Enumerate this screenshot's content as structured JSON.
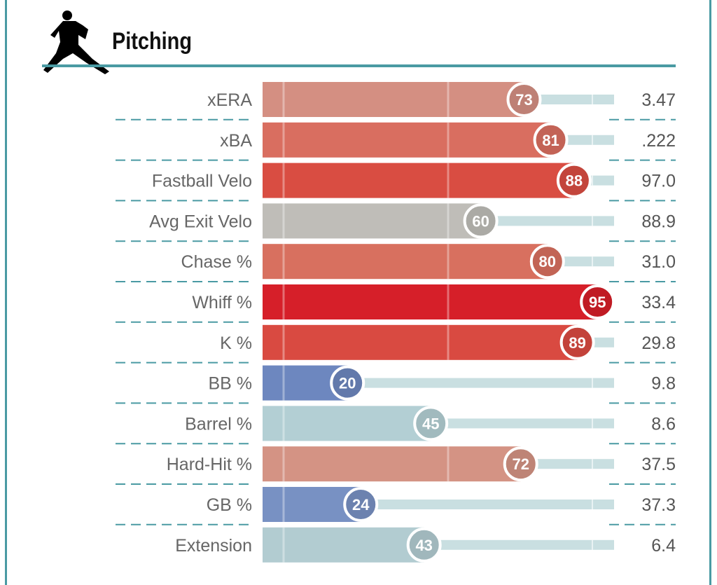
{
  "section_title": "Pitching",
  "section_icon": "pitcher-icon",
  "chart_data": {
    "type": "bar",
    "orientation": "horizontal",
    "xlim": [
      0,
      100
    ],
    "categories": [
      "xERA",
      "xBA",
      "Fastball Velo",
      "Avg Exit Velo",
      "Chase %",
      "Whiff %",
      "K %",
      "BB %",
      "Barrel %",
      "Hard-Hit %",
      "GB %",
      "Extension"
    ],
    "percentiles": [
      73,
      81,
      88,
      60,
      80,
      95,
      89,
      20,
      45,
      72,
      24,
      43
    ],
    "stat_values": [
      "3.47",
      ".222",
      "97.0",
      "88.9",
      "31.0",
      "33.4",
      "29.8",
      "9.8",
      "8.6",
      "37.5",
      "37.3",
      "6.4"
    ],
    "colors": [
      "#d48f82",
      "#d96e60",
      "#d94d42",
      "#bfbdb8",
      "#d8705f",
      "#d61f29",
      "#d94a41",
      "#6d87bf",
      "#b3cfd4",
      "#d49384",
      "#7891c3",
      "#b2ccd1"
    ]
  }
}
